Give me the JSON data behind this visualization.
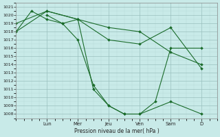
{
  "bg_color": "#c8eae8",
  "grid_major_color": "#9abfbd",
  "grid_minor_color": "#b5d8d6",
  "line_color": "#1a6b2a",
  "ylim": [
    1007.5,
    1021.5
  ],
  "yticks": [
    1008,
    1009,
    1010,
    1011,
    1012,
    1013,
    1014,
    1015,
    1016,
    1017,
    1018,
    1019,
    1020,
    1021
  ],
  "day_labels": [
    "Lun",
    "Mer",
    "Jeu",
    "Ven",
    "Sam",
    "D"
  ],
  "day_positions": [
    24,
    48,
    72,
    96,
    120,
    144
  ],
  "xlim": [
    0,
    156
  ],
  "xlabel": "Pression niveau de la mer( hPa )",
  "series": [
    {
      "x": [
        0,
        24,
        48,
        72,
        96,
        120,
        144
      ],
      "y": [
        1019,
        1020.5,
        1019.5,
        1018.5,
        1018,
        1015.5,
        1014
      ]
    },
    {
      "x": [
        0,
        24,
        48,
        72,
        96,
        120,
        144
      ],
      "y": [
        1018,
        1020.5,
        1019.5,
        1017,
        1016.5,
        1018.5,
        1013.5
      ]
    },
    {
      "x": [
        0,
        12,
        24,
        36,
        48,
        60,
        72,
        84,
        96,
        120,
        144
      ],
      "y": [
        1018,
        1020.5,
        1019.5,
        1019,
        1017,
        1011.5,
        1009,
        1008,
        1008,
        1009.5,
        1008
      ]
    },
    {
      "x": [
        24,
        36,
        48,
        60,
        72,
        84,
        96,
        108,
        120,
        144
      ],
      "y": [
        1020,
        1019,
        1019.5,
        1011,
        1009,
        1008,
        1008,
        1009.5,
        1016,
        1016
      ]
    }
  ]
}
